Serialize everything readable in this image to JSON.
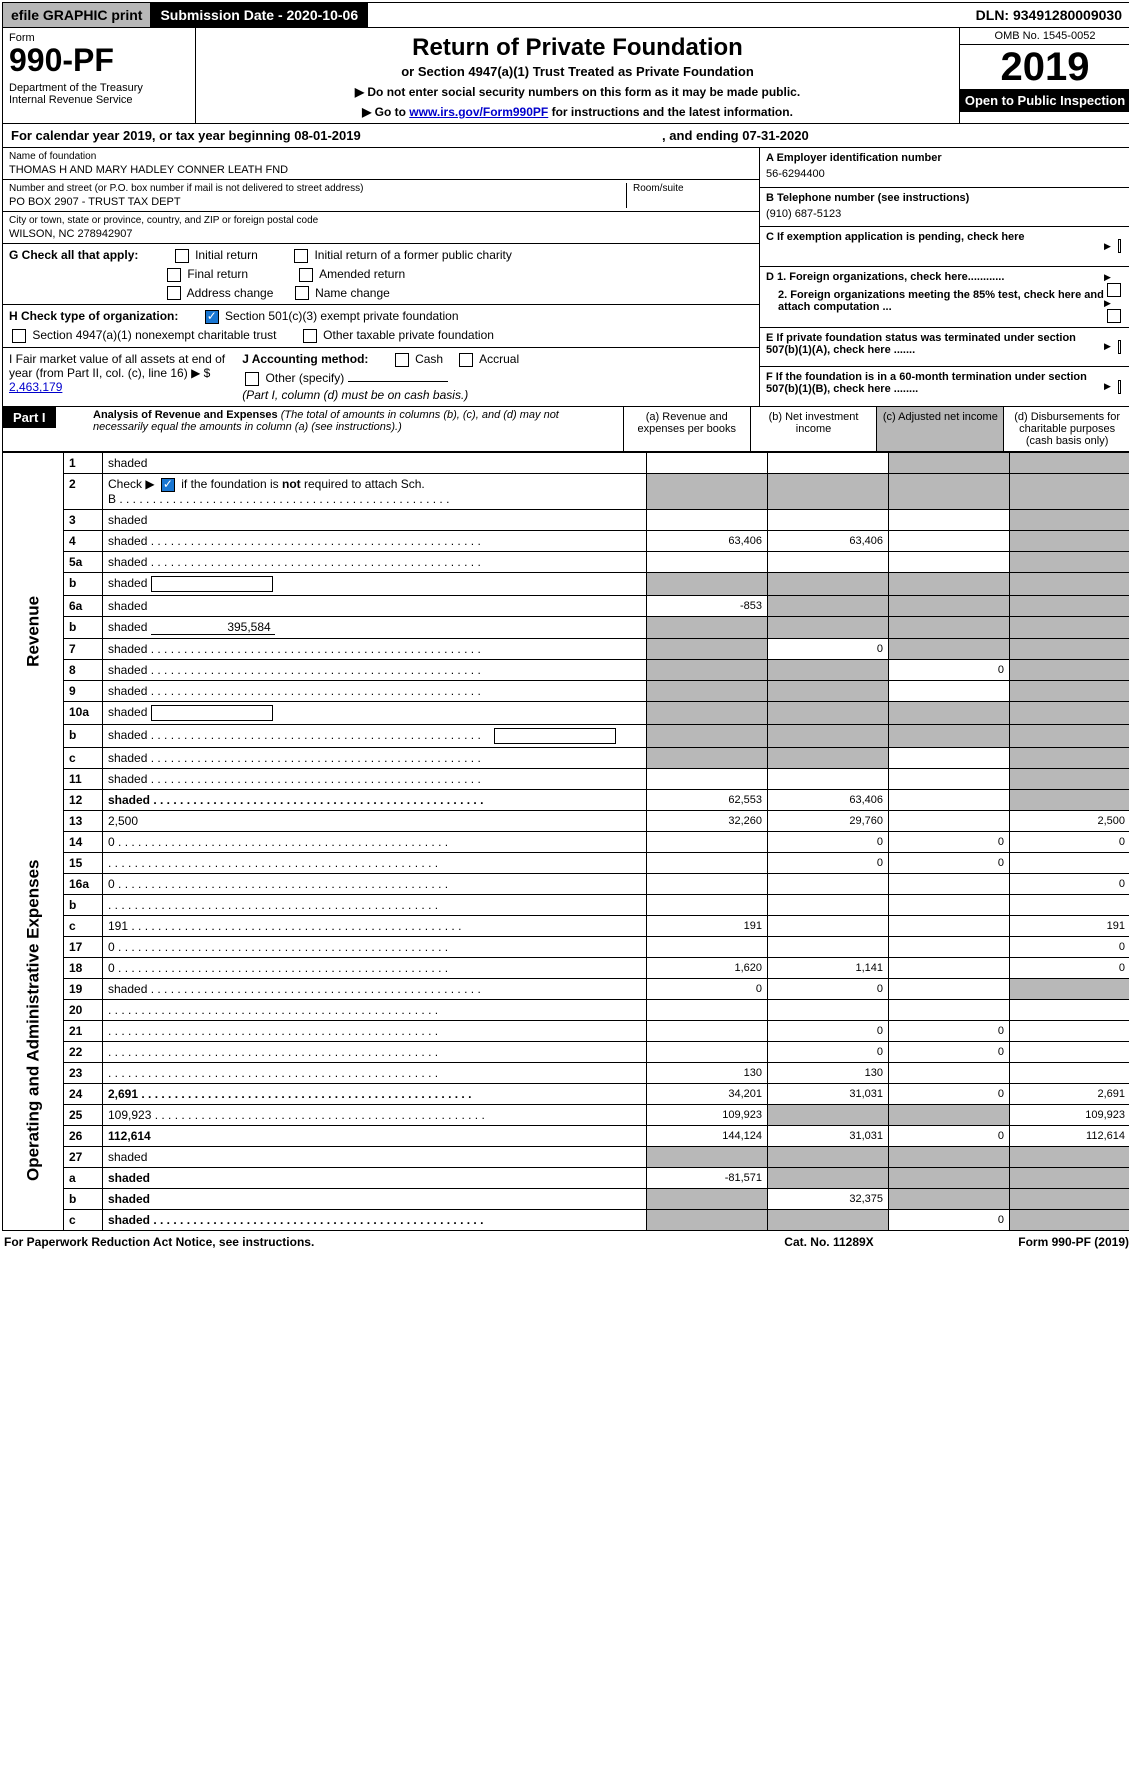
{
  "topbar": {
    "efile": "efile GRAPHIC print",
    "submission": "Submission Date - 2020-10-06",
    "dln": "DLN: 93491280009030"
  },
  "header": {
    "form_label": "Form",
    "form_num": "990-PF",
    "dept": "Department of the Treasury\nInternal Revenue Service",
    "title": "Return of Private Foundation",
    "subtitle": "or Section 4947(a)(1) Trust Treated as Private Foundation",
    "instruct1": "▶ Do not enter social security numbers on this form as it may be made public.",
    "instruct2_prefix": "▶ Go to ",
    "instruct2_link": "www.irs.gov/Form990PF",
    "instruct2_suffix": " for instructions and the latest information.",
    "omb": "OMB No. 1545-0052",
    "year": "2019",
    "open": "Open to Public Inspection"
  },
  "calendar": {
    "left": "For calendar year 2019, or tax year beginning 08-01-2019",
    "right": ", and ending 07-31-2020"
  },
  "info": {
    "name_label": "Name of foundation",
    "name": "THOMAS H AND MARY HADLEY CONNER LEATH FND",
    "addr_label": "Number and street (or P.O. box number if mail is not delivered to street address)",
    "addr": "PO BOX 2907 - TRUST TAX DEPT",
    "room_label": "Room/suite",
    "city_label": "City or town, state or province, country, and ZIP or foreign postal code",
    "city": "WILSON, NC  278942907",
    "ein_label": "A Employer identification number",
    "ein": "56-6294400",
    "tel_label": "B Telephone number (see instructions)",
    "tel": "(910) 687-5123",
    "c_label": "C If exemption application is pending, check here",
    "d1": "D 1. Foreign organizations, check here............",
    "d2": "2. Foreign organizations meeting the 85% test, check here and attach computation ...",
    "e_label": "E  If private foundation status was terminated under section 507(b)(1)(A), check here .......",
    "f_label": "F  If the foundation is in a 60-month termination under section 507(b)(1)(B), check here ........"
  },
  "checkG": {
    "label": "G Check all that apply:",
    "opts": [
      "Initial return",
      "Initial return of a former public charity",
      "Final return",
      "Amended return",
      "Address change",
      "Name change"
    ]
  },
  "checkH": {
    "label": "H Check type of organization:",
    "opt1": "Section 501(c)(3) exempt private foundation",
    "opt2": "Section 4947(a)(1) nonexempt charitable trust",
    "opt3": "Other taxable private foundation"
  },
  "checkI": {
    "label": "I Fair market value of all assets at end of year (from Part II, col. (c), line 16)",
    "val_prefix": "▶ $",
    "val": "2,463,179",
    "j_label": "J Accounting method:",
    "j_cash": "Cash",
    "j_accrual": "Accrual",
    "j_other": "Other (specify)",
    "j_note": "(Part I, column (d) must be on cash basis.)"
  },
  "part1": {
    "tag": "Part I",
    "title": "Analysis of Revenue and Expenses",
    "note": " (The total of amounts in columns (b), (c), and (d) may not necessarily equal the amounts in column (a) (see instructions).)",
    "cols": {
      "a": "(a)    Revenue and expenses per books",
      "b": "(b)    Net investment income",
      "c": "(c)   Adjusted net income",
      "d": "(d)   Disbursements for charitable purposes (cash basis only)"
    }
  },
  "sidebars": {
    "revenue": "Revenue",
    "expenses": "Operating and Administrative Expenses"
  },
  "rows": [
    {
      "n": "1",
      "d": "shaded",
      "a": "",
      "b": "",
      "c": "shaded"
    },
    {
      "n": "2",
      "d": "shaded",
      "a": "shaded",
      "b": "shaded",
      "c": "shaded",
      "hascheck": true,
      "dots": true
    },
    {
      "n": "3",
      "d": "shaded",
      "a": "",
      "b": "",
      "c": ""
    },
    {
      "n": "4",
      "d": "shaded",
      "a": "63,406",
      "b": "63,406",
      "c": "",
      "dots": true
    },
    {
      "n": "5a",
      "d": "shaded",
      "a": "",
      "b": "",
      "c": "",
      "dots": true
    },
    {
      "n": "b",
      "d": "shaded",
      "a": "shaded",
      "b": "shaded",
      "c": "shaded",
      "blank": true
    },
    {
      "n": "6a",
      "d": "shaded",
      "a": "-853",
      "b": "shaded",
      "c": "shaded"
    },
    {
      "n": "b",
      "d": "shaded",
      "a": "shaded",
      "b": "shaded",
      "c": "shaded",
      "inlineval": "395,584"
    },
    {
      "n": "7",
      "d": "shaded",
      "a": "shaded",
      "b": "0",
      "c": "shaded",
      "dots": true
    },
    {
      "n": "8",
      "d": "shaded",
      "a": "shaded",
      "b": "shaded",
      "c": "0",
      "dots": true
    },
    {
      "n": "9",
      "d": "shaded",
      "a": "shaded",
      "b": "shaded",
      "c": "",
      "dots": true
    },
    {
      "n": "10a",
      "d": "shaded",
      "a": "shaded",
      "b": "shaded",
      "c": "shaded",
      "blank": true
    },
    {
      "n": "b",
      "d": "shaded",
      "a": "shaded",
      "b": "shaded",
      "c": "shaded",
      "blank": true,
      "dots": true
    },
    {
      "n": "c",
      "d": "shaded",
      "a": "shaded",
      "b": "shaded",
      "c": "",
      "dots": true
    },
    {
      "n": "11",
      "d": "shaded",
      "a": "",
      "b": "",
      "c": "",
      "dots": true
    },
    {
      "n": "12",
      "d": "shaded",
      "a": "62,553",
      "b": "63,406",
      "c": "",
      "bold": true,
      "dots": true
    },
    {
      "n": "13",
      "d": "2,500",
      "a": "32,260",
      "b": "29,760",
      "c": ""
    },
    {
      "n": "14",
      "d": "0",
      "a": "",
      "b": "0",
      "c": "0",
      "dots": true
    },
    {
      "n": "15",
      "d": "",
      "a": "",
      "b": "0",
      "c": "0",
      "dots": true
    },
    {
      "n": "16a",
      "d": "0",
      "a": "",
      "b": "",
      "c": "",
      "dots": true
    },
    {
      "n": "b",
      "d": "",
      "a": "",
      "b": "",
      "c": "",
      "dots": true
    },
    {
      "n": "c",
      "d": "191",
      "a": "191",
      "b": "",
      "c": "",
      "dots": true
    },
    {
      "n": "17",
      "d": "0",
      "a": "",
      "b": "",
      "c": "",
      "dots": true
    },
    {
      "n": "18",
      "d": "0",
      "a": "1,620",
      "b": "1,141",
      "c": "",
      "dots": true
    },
    {
      "n": "19",
      "d": "shaded",
      "a": "0",
      "b": "0",
      "c": "",
      "dots": true
    },
    {
      "n": "20",
      "d": "",
      "a": "",
      "b": "",
      "c": "",
      "dots": true
    },
    {
      "n": "21",
      "d": "",
      "a": "",
      "b": "0",
      "c": "0",
      "dots": true
    },
    {
      "n": "22",
      "d": "",
      "a": "",
      "b": "0",
      "c": "0",
      "dots": true
    },
    {
      "n": "23",
      "d": "",
      "a": "130",
      "b": "130",
      "c": "",
      "dots": true
    },
    {
      "n": "24",
      "d": "2,691",
      "a": "34,201",
      "b": "31,031",
      "c": "0",
      "bold": true,
      "dots": true
    },
    {
      "n": "25",
      "d": "109,923",
      "a": "109,923",
      "b": "shaded",
      "c": "shaded",
      "dots": true
    },
    {
      "n": "26",
      "d": "112,614",
      "a": "144,124",
      "b": "31,031",
      "c": "0",
      "bold": true
    },
    {
      "n": "27",
      "d": "shaded",
      "a": "shaded",
      "b": "shaded",
      "c": "shaded"
    },
    {
      "n": "a",
      "d": "shaded",
      "a": "-81,571",
      "b": "shaded",
      "c": "shaded",
      "bold": true
    },
    {
      "n": "b",
      "d": "shaded",
      "a": "shaded",
      "b": "32,375",
      "c": "shaded",
      "bold": true
    },
    {
      "n": "c",
      "d": "shaded",
      "a": "shaded",
      "b": "shaded",
      "c": "0",
      "bold": true,
      "dots": true
    }
  ],
  "footer": {
    "left": "For Paperwork Reduction Act Notice, see instructions.",
    "mid": "Cat. No. 11289X",
    "right": "Form 990-PF (2019)"
  }
}
